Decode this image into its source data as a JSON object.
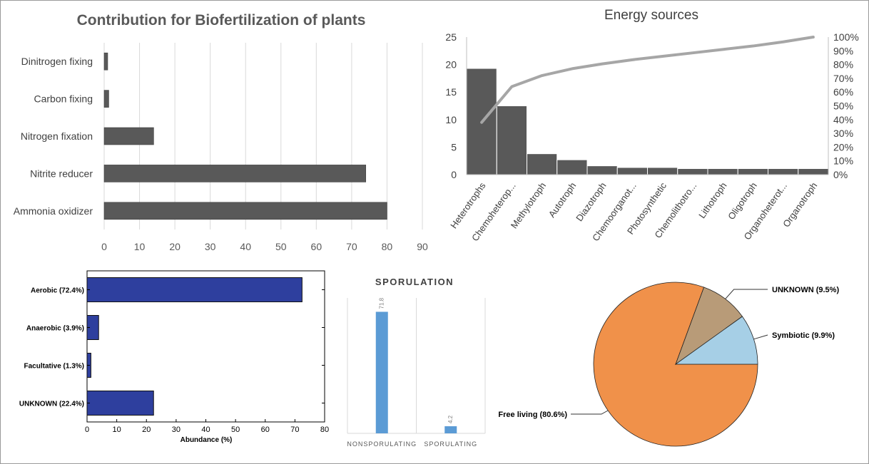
{
  "chart_data": [
    {
      "type": "bar",
      "orientation": "horizontal",
      "title": "Contribution for Biofertilization of plants",
      "categories": [
        "Dinitrogen fixing",
        "Carbon fixing",
        "Nitrogen fixation",
        "Nitrite reducer",
        "Ammonia oxidizer"
      ],
      "values": [
        1,
        1.3,
        14,
        74,
        80
      ],
      "xlim": [
        0,
        90
      ],
      "xticks": [
        "0",
        "10",
        "20",
        "30",
        "40",
        "50",
        "60",
        "70",
        "80",
        "90"
      ],
      "grid": true,
      "colors": {
        "bar": "#595959",
        "grid": "#d9d9d9"
      }
    },
    {
      "type": "bar",
      "subtype": "pareto",
      "title": "Energy sources",
      "categories": [
        "Heterotrophs",
        "Chemoheterop...",
        "Methylotroph",
        "Autotroph",
        "Diazotroph",
        "Chemoorganot...",
        "Photosynthetic",
        "Chemolithotro...",
        "Lithotroph",
        "Oligotroph",
        "Organoheterot...",
        "Organotroph"
      ],
      "values": [
        19.3,
        12.5,
        3.8,
        2.7,
        1.6,
        1.3,
        1.3,
        1.1,
        1.1,
        1.1,
        1.1,
        1.1
      ],
      "cumulative_percent": [
        38,
        64,
        72,
        77,
        80.5,
        83.5,
        86,
        88.5,
        91,
        93.5,
        96.5,
        100
      ],
      "ylim": [
        0,
        25
      ],
      "yticks": [
        "0",
        "5",
        "10",
        "15",
        "20",
        "25"
      ],
      "y2lim": [
        0,
        100
      ],
      "y2ticks": [
        "0%",
        "10%",
        "20%",
        "30%",
        "40%",
        "50%",
        "60%",
        "70%",
        "80%",
        "90%",
        "100%"
      ],
      "colors": {
        "bar": "#595959",
        "line": "#a6a6a6"
      }
    },
    {
      "type": "bar",
      "orientation": "horizontal",
      "categories": [
        "Aerobic (72.4%)",
        "Anaerobic (3.9%)",
        "Facultative (1.3%)",
        "UNKNOWN (22.4%)"
      ],
      "values": [
        72.4,
        3.9,
        1.3,
        22.4
      ],
      "xlim": [
        0,
        80
      ],
      "xticks": [
        "0",
        "10",
        "20",
        "30",
        "40",
        "50",
        "60",
        "70",
        "80"
      ],
      "xlabel": "Abundance (%)",
      "colors": {
        "bar": "#2e3f9e"
      }
    },
    {
      "type": "bar",
      "title": "SPORULATION",
      "categories": [
        "NONSPORULATING",
        "SPORULATING"
      ],
      "values": [
        71.8,
        4.2
      ],
      "data_labels": [
        "71.8",
        "4.2"
      ],
      "ylim": [
        0,
        80
      ],
      "colors": {
        "bar": "#5b9bd5"
      }
    },
    {
      "type": "pie",
      "slices": [
        {
          "label": "Free living (80.6%)",
          "value": 80.6,
          "color": "#f0914a"
        },
        {
          "label": "UNKNOWN (9.5%)",
          "value": 9.5,
          "color": "#b89b78"
        },
        {
          "label": "Symbiotic (9.9%)",
          "value": 9.9,
          "color": "#a6cfe6"
        }
      ]
    }
  ]
}
